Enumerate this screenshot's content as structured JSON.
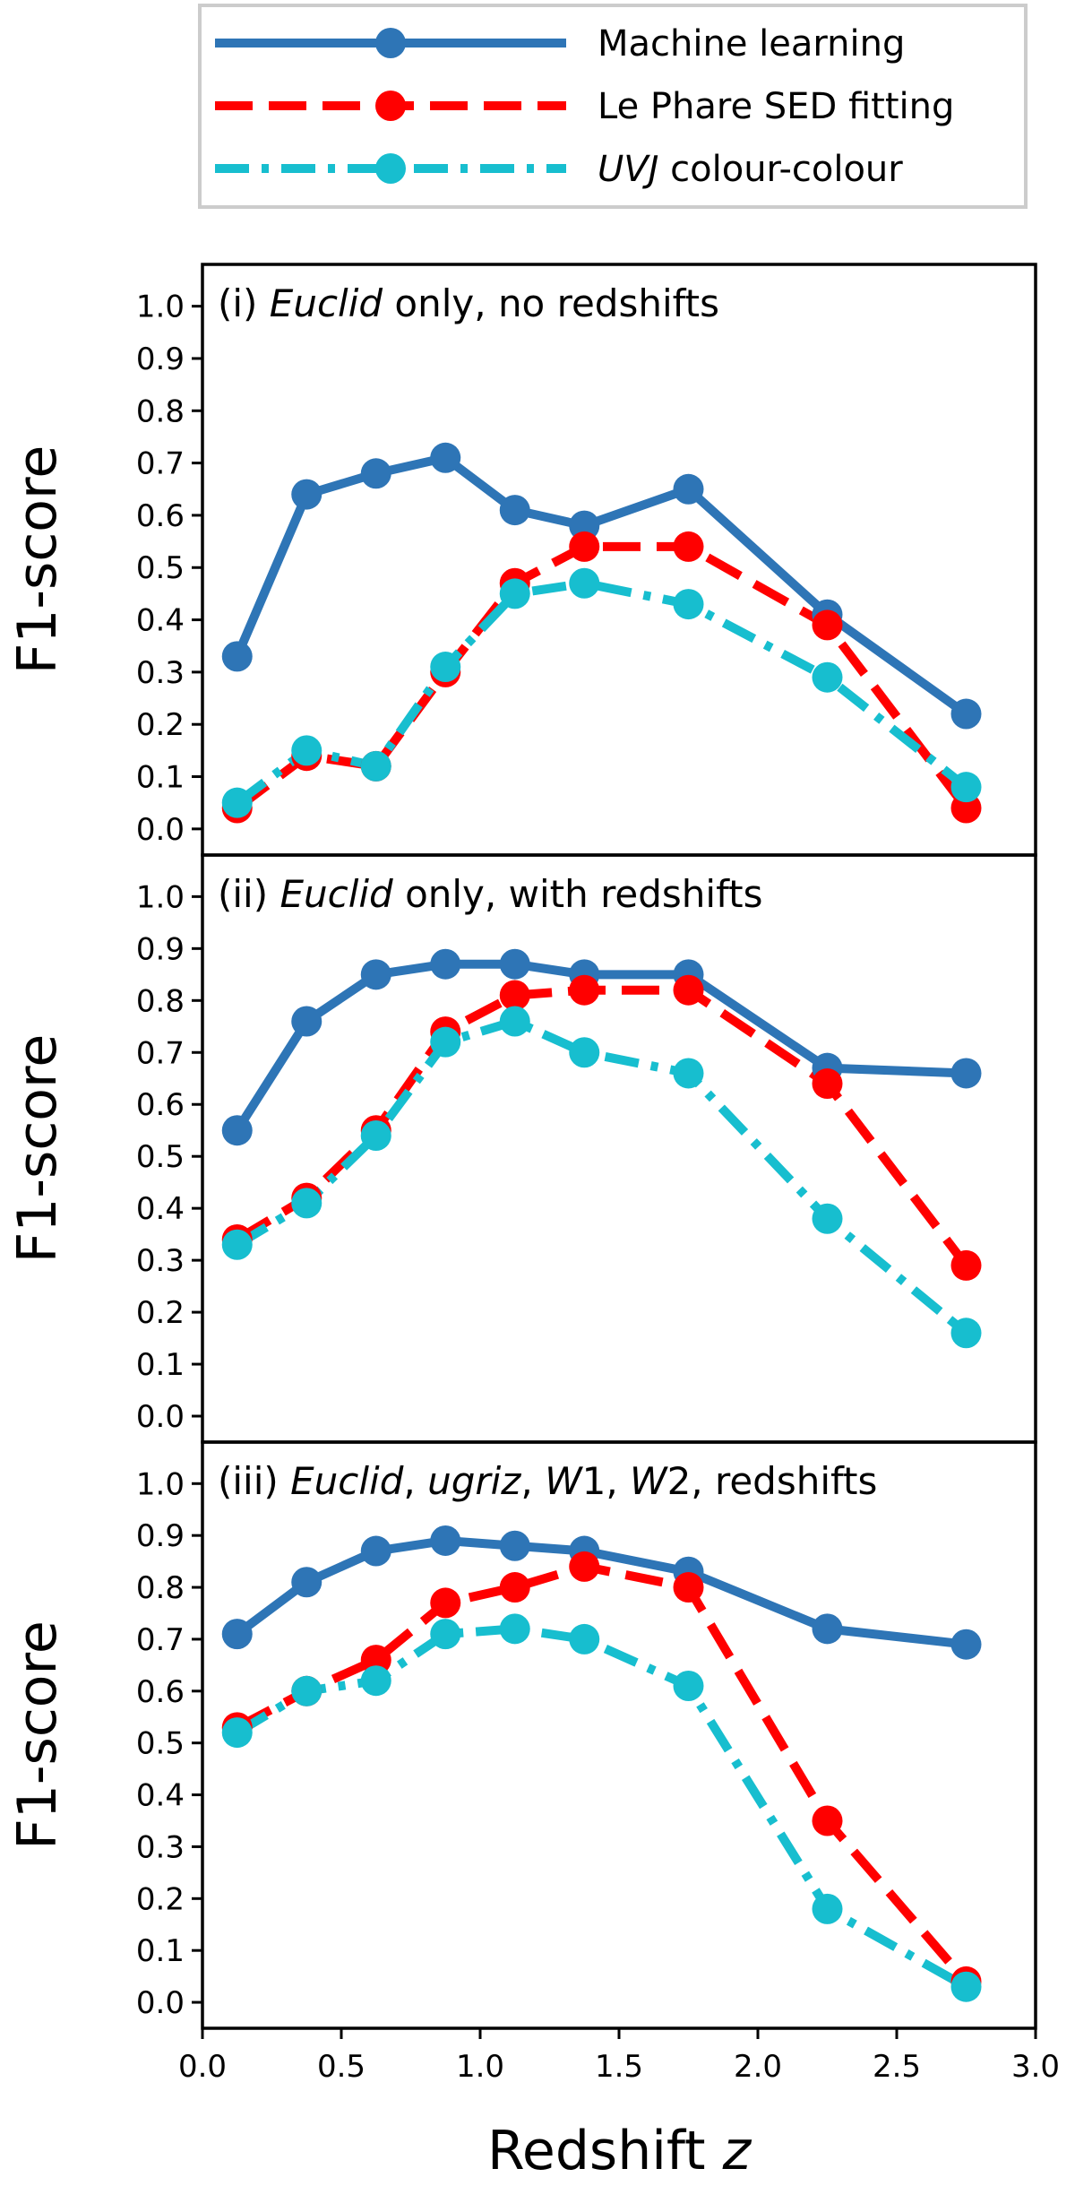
{
  "chart_data": {
    "type": "line",
    "xlabel_text": "Redshift ",
    "xlabel_var": "z",
    "ylabel": "F1-score",
    "xlim": [
      0.0,
      3.0
    ],
    "ylim": [
      -0.05,
      1.08
    ],
    "x_ticks": [
      "0.0",
      "0.5",
      "1.0",
      "1.5",
      "2.0",
      "2.5",
      "3.0"
    ],
    "y_ticks": [
      "0.0",
      "0.1",
      "0.2",
      "0.3",
      "0.4",
      "0.5",
      "0.6",
      "0.7",
      "0.8",
      "0.9",
      "1.0"
    ],
    "legend": {
      "placement": "top-center",
      "entries": [
        {
          "label": "Machine learning"
        },
        {
          "label": "Le Phare SED fitting"
        },
        {
          "label_italic": "UVJ",
          "label": " colour-colour"
        }
      ]
    },
    "series_styles": [
      {
        "name": "Machine learning",
        "color": "#2e75b6",
        "dash": "solid"
      },
      {
        "name": "Le Phare SED fitting",
        "color": "#ff0000",
        "dash": "dashed"
      },
      {
        "name": "UVJ colour-colour",
        "color": "#17becf",
        "dash": "dashdot"
      }
    ],
    "x": [
      0.125,
      0.375,
      0.625,
      0.875,
      1.125,
      1.375,
      1.75,
      2.25,
      2.75
    ],
    "panels": [
      {
        "title_parts": [
          {
            "text": "(i) ",
            "italic": false
          },
          {
            "text": "Euclid",
            "italic": true
          },
          {
            "text": " only, no redshifts",
            "italic": false
          }
        ],
        "series": [
          {
            "name": "Machine learning",
            "values": [
              0.33,
              0.64,
              0.68,
              0.71,
              0.61,
              0.58,
              0.65,
              0.41,
              0.22
            ]
          },
          {
            "name": "Le Phare SED fitting",
            "values": [
              0.04,
              0.14,
              0.12,
              0.3,
              0.47,
              0.54,
              0.54,
              0.39,
              0.04
            ]
          },
          {
            "name": "UVJ colour-colour",
            "values": [
              0.05,
              0.15,
              0.12,
              0.31,
              0.45,
              0.47,
              0.43,
              0.29,
              0.08
            ]
          }
        ]
      },
      {
        "title_parts": [
          {
            "text": "(ii) ",
            "italic": false
          },
          {
            "text": "Euclid",
            "italic": true
          },
          {
            "text": " only, with redshifts",
            "italic": false
          }
        ],
        "series": [
          {
            "name": "Machine learning",
            "values": [
              0.55,
              0.76,
              0.85,
              0.87,
              0.87,
              0.85,
              0.85,
              0.67,
              0.66
            ]
          },
          {
            "name": "Le Phare SED fitting",
            "values": [
              0.34,
              0.42,
              0.55,
              0.74,
              0.81,
              0.82,
              0.82,
              0.64,
              0.29
            ]
          },
          {
            "name": "UVJ colour-colour",
            "values": [
              0.33,
              0.41,
              0.54,
              0.72,
              0.76,
              0.7,
              0.66,
              0.38,
              0.16
            ]
          }
        ]
      },
      {
        "title_parts": [
          {
            "text": "(iii) ",
            "italic": false
          },
          {
            "text": "Euclid",
            "italic": true
          },
          {
            "text": ", ",
            "italic": false
          },
          {
            "text": "ugriz",
            "italic": true
          },
          {
            "text": ", ",
            "italic": false
          },
          {
            "text": "W",
            "italic": true
          },
          {
            "text": "1, ",
            "italic": false
          },
          {
            "text": "W",
            "italic": true
          },
          {
            "text": "2, redshifts",
            "italic": false
          }
        ],
        "series": [
          {
            "name": "Machine learning",
            "values": [
              0.71,
              0.81,
              0.87,
              0.89,
              0.88,
              0.87,
              0.83,
              0.72,
              0.69
            ]
          },
          {
            "name": "Le Phare SED fitting",
            "values": [
              0.53,
              0.6,
              0.66,
              0.77,
              0.8,
              0.84,
              0.8,
              0.35,
              0.04
            ]
          },
          {
            "name": "UVJ colour-colour",
            "values": [
              0.52,
              0.6,
              0.62,
              0.71,
              0.72,
              0.7,
              0.61,
              0.18,
              0.03
            ]
          }
        ]
      }
    ]
  }
}
